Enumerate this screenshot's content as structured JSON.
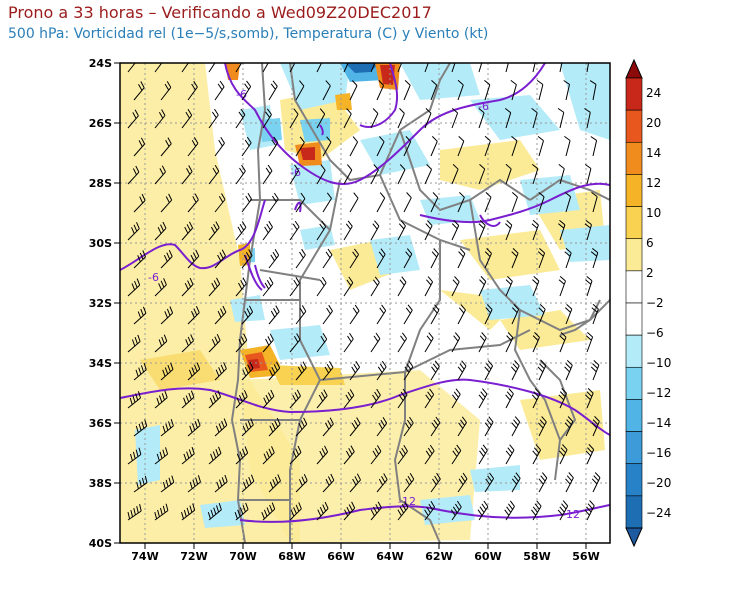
{
  "title": {
    "line1": "Prono a 33 horas – Verificando a Wed09Z20DEC2017",
    "line2": "500 hPa: Vorticidad rel (1e−5/s,somb), Temperatura (C) y Viento (kt)"
  },
  "axes": {
    "lon_labels": [
      "74W",
      "72W",
      "70W",
      "68W",
      "66W",
      "64W",
      "62W",
      "60W",
      "58W",
      "56W"
    ],
    "lat_labels": [
      "24S",
      "26S",
      "28S",
      "30S",
      "32S",
      "34S",
      "36S",
      "38S",
      "40S"
    ]
  },
  "colorbar": {
    "labels": [
      "24",
      "20",
      "14",
      "12",
      "10",
      "6",
      "2",
      "−2",
      "−6",
      "−10",
      "−12",
      "−14",
      "−16",
      "−20",
      "−24"
    ],
    "colors": [
      "#8c0a0a",
      "#c8281a",
      "#e8581e",
      "#f08c1e",
      "#f5b428",
      "#f8d250",
      "#fbeb96",
      "#ffffff",
      "#ffffff",
      "#b4ebf8",
      "#78d2f0",
      "#50b4e6",
      "#3c9bd8",
      "#2882c8",
      "#1e6eb4",
      "#1e5aa0"
    ]
  },
  "contour_labels": [
    "-6",
    "-6",
    "-6",
    "-6",
    "-12",
    "-12"
  ],
  "colors": {
    "temperature_contour": "#7a1fd0",
    "borders": "#808080",
    "frame": "#000000"
  }
}
